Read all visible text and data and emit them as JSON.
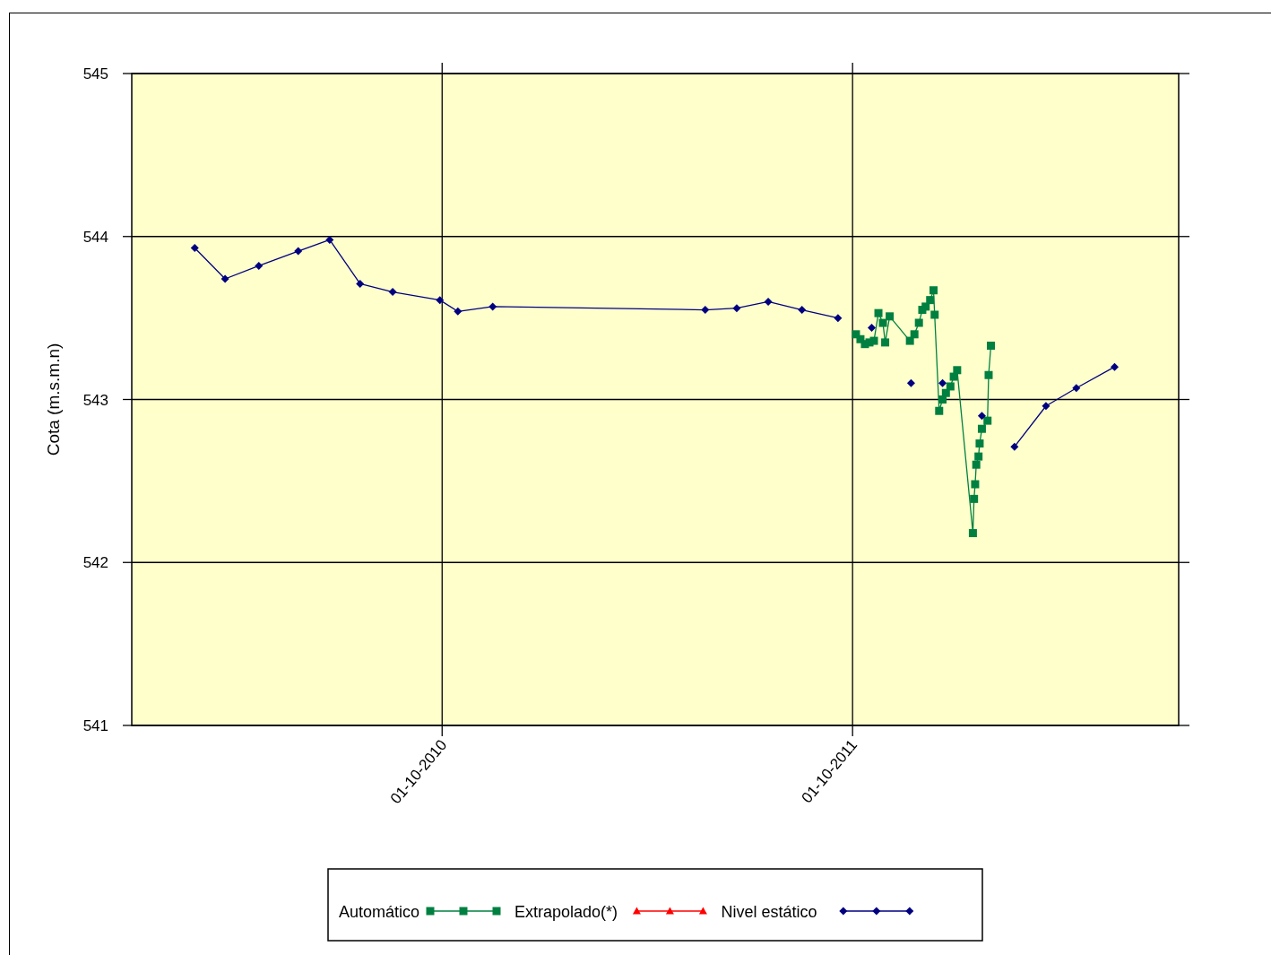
{
  "chart_data": {
    "type": "line",
    "ylabel": "Cota (m.s.m.n)",
    "xlim": [
      "2009-12-29",
      "2012-07-17"
    ],
    "xticks": [
      {
        "value": "2010-10-01",
        "label": "01-10-2010"
      },
      {
        "value": "2011-10-01",
        "label": "01-10-2011"
      }
    ],
    "ylim": [
      541,
      545
    ],
    "yticks": [
      541,
      542,
      543,
      544,
      545
    ],
    "grid": true,
    "legend": "bottom",
    "line_style": "solid",
    "series": [
      {
        "name": "Automático",
        "color": "#008040",
        "marker": "square",
        "x": [
          "2011-10-04",
          "2011-10-08",
          "2011-10-12",
          "2011-10-16",
          "2011-10-20",
          "2011-10-24",
          "2011-10-28",
          "2011-10-30",
          "2011-11-03",
          "2011-11-21",
          "2011-11-25",
          "2011-11-29",
          "2011-12-02",
          "2011-12-05",
          "2011-12-09",
          "2011-12-12",
          "2011-12-13",
          "2011-12-17",
          "2011-12-20",
          "2011-12-23",
          "2011-12-27",
          "2011-12-30",
          "2012-01-02",
          "2012-01-16",
          "2012-01-17",
          "2012-01-18",
          "2012-01-19",
          "2012-01-21",
          "2012-01-22",
          "2012-01-24",
          "2012-01-29",
          "2012-01-30",
          "2012-02-01"
        ],
        "values": [
          543.4,
          543.37,
          543.34,
          543.35,
          543.36,
          543.53,
          543.47,
          543.35,
          543.51,
          543.36,
          543.4,
          543.47,
          543.55,
          543.57,
          543.61,
          543.67,
          543.52,
          542.93,
          543.0,
          543.04,
          543.08,
          543.14,
          543.18,
          542.18,
          542.39,
          542.48,
          542.6,
          542.65,
          542.73,
          542.82,
          542.87,
          543.15,
          543.33
        ]
      },
      {
        "name": "Extrapolado(*)",
        "color": "#ff0000",
        "marker": "triangle"
      },
      {
        "name": "Nivel estático",
        "color": "#000080",
        "marker": "diamond",
        "x": [
          "2010-02-23",
          "2010-03-22",
          "2010-04-21",
          "2010-05-26",
          "2010-06-23",
          "2010-07-20",
          "2010-08-18",
          "2010-09-29",
          "2010-10-15",
          "2010-11-15",
          "2011-05-23",
          "2011-06-20",
          "2011-07-18",
          "2011-08-17",
          "2011-09-18",
          "2011-10-01",
          "2011-10-18",
          "2011-11-01",
          "2011-11-22",
          "2011-12-01",
          "2011-12-20",
          "2012-01-01",
          "2012-01-24",
          "2012-02-01",
          "2012-02-22",
          "2012-03-21",
          "2012-04-17",
          "2012-05-21"
        ],
        "values": [
          543.93,
          543.74,
          543.82,
          543.91,
          543.98,
          543.71,
          543.66,
          543.61,
          543.54,
          543.57,
          543.55,
          543.56,
          543.6,
          543.55,
          543.5,
          null,
          543.44,
          null,
          543.1,
          null,
          543.1,
          null,
          542.9,
          null,
          542.71,
          542.96,
          543.07,
          543.2
        ]
      }
    ]
  }
}
